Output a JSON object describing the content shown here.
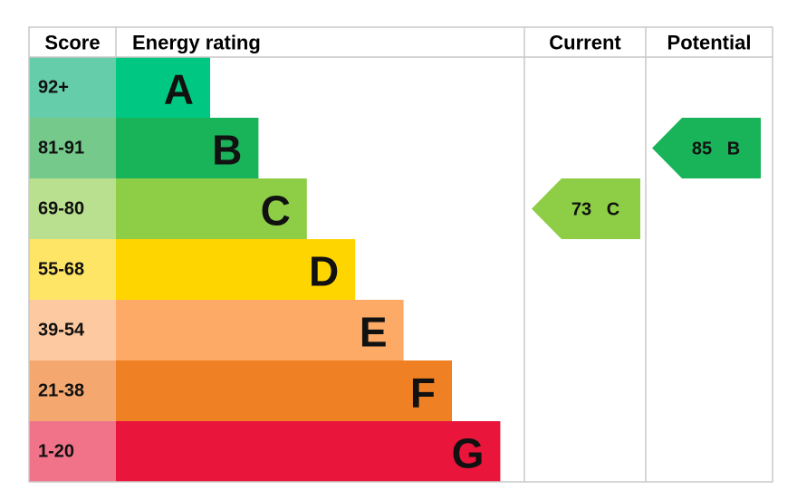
{
  "header": {
    "score": "Score",
    "rating": "Energy rating",
    "current": "Current",
    "potential": "Potential"
  },
  "bands": [
    {
      "range": "92+",
      "letter": "A",
      "color": "#00c781",
      "light": "#66cdaa"
    },
    {
      "range": "81-91",
      "letter": "B",
      "color": "#19b459",
      "light": "#75c98b"
    },
    {
      "range": "69-80",
      "letter": "C",
      "color": "#8dce46",
      "light": "#b8e08e"
    },
    {
      "range": "55-68",
      "letter": "D",
      "color": "#ffd500",
      "light": "#ffe566"
    },
    {
      "range": "39-54",
      "letter": "E",
      "color": "#fcaa65",
      "light": "#fdc9a0"
    },
    {
      "range": "21-38",
      "letter": "F",
      "color": "#ef8023",
      "light": "#f4a870"
    },
    {
      "range": "1-20",
      "letter": "G",
      "color": "#e9153b",
      "light": "#f0738a"
    }
  ],
  "current": {
    "score": "73",
    "letter": "C"
  },
  "potential": {
    "score": "85",
    "letter": "B"
  }
}
